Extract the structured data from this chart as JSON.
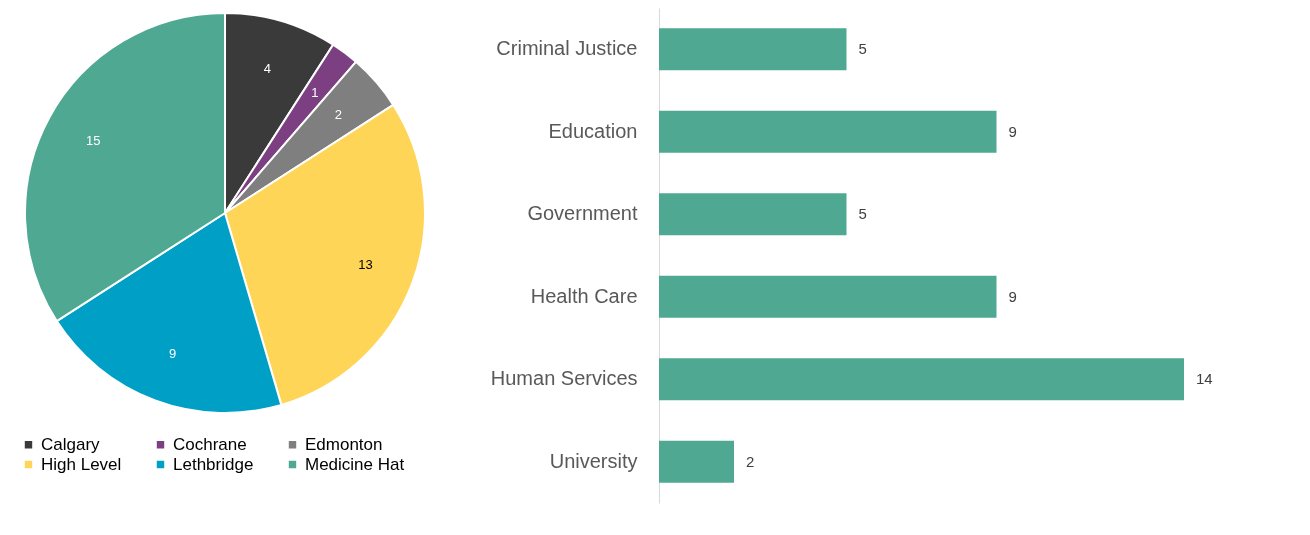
{
  "chart_data": [
    {
      "type": "pie",
      "categories": [
        "Calgary",
        "Cochrane",
        "Edmonton",
        "High Level",
        "Lethbridge",
        "Medicine Hat"
      ],
      "values": [
        4,
        1,
        2,
        13,
        9,
        15
      ],
      "colors": [
        "#3a3a3a",
        "#7b3f82",
        "#7f7f7f",
        "#ffd557",
        "#00a0c6",
        "#4fa891"
      ],
      "data_labels": true,
      "legend": "bottom"
    },
    {
      "type": "bar",
      "orientation": "horizontal",
      "categories": [
        "Criminal Justice",
        "Education",
        "Government",
        "Health Care",
        "Human Services",
        "University"
      ],
      "series": [
        {
          "color": "#4fa891",
          "values": [
            5,
            9,
            5,
            9,
            14,
            2
          ]
        }
      ],
      "data_labels": true
    }
  ]
}
